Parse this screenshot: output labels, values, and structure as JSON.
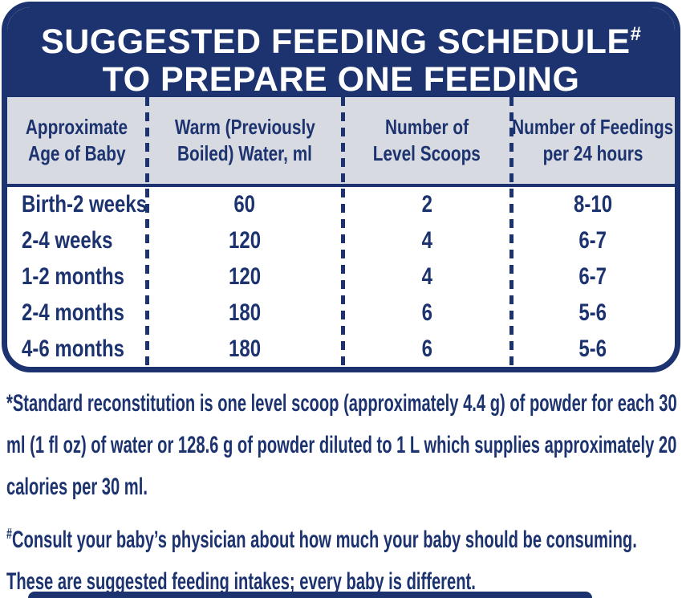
{
  "header": {
    "title_line1": "SUGGESTED FEEDING SCHEDULE",
    "title_marker": "#",
    "title_line2": "TO PREPARE ONE FEEDING"
  },
  "table": {
    "columns": [
      {
        "line1": "Approximate",
        "line2": "Age of Baby"
      },
      {
        "line1": "Warm (Previously",
        "line2": "Boiled) Water, ml"
      },
      {
        "line1": "Number of",
        "line2": "Level Scoops"
      },
      {
        "line1": "Number of Feedings",
        "line2": "per 24 hours"
      }
    ],
    "rows": [
      {
        "age": "Birth-2 weeks",
        "water_ml": "60",
        "scoops": "2",
        "feedings_per_24h": "8-10"
      },
      {
        "age": "2-4 weeks",
        "water_ml": "120",
        "scoops": "4",
        "feedings_per_24h": "6-7"
      },
      {
        "age": "1-2 months",
        "water_ml": "120",
        "scoops": "4",
        "feedings_per_24h": "6-7"
      },
      {
        "age": "2-4 months",
        "water_ml": "180",
        "scoops": "6",
        "feedings_per_24h": "5-6"
      },
      {
        "age": "4-6 months",
        "water_ml": "180",
        "scoops": "6",
        "feedings_per_24h": "5-6"
      }
    ]
  },
  "footnotes": {
    "reconstitution": "*Standard reconstitution is one level scoop (approximately 4.4 g) of powder for each 30 ml (1 fl oz) of water or 128.6 g of powder diluted to 1 L which supplies approximately 20 calories per 30 ml.",
    "consult_marker": "#",
    "consult_text": "Consult your baby’s physician about how much your baby should be consuming. These are suggested feeding intakes; every baby is different."
  },
  "colors": {
    "navy": "#1c336f",
    "table_header_bg": "#d8dae2",
    "title_text": "#ffffff"
  }
}
